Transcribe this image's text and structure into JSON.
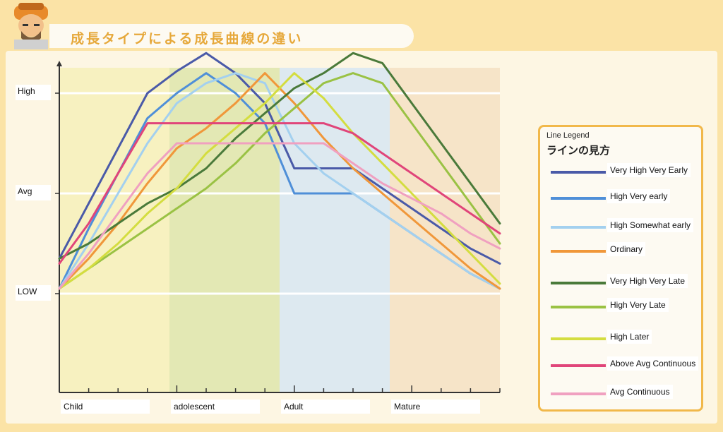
{
  "header": {
    "title": "成長タイプによる成長曲線の違い"
  },
  "legend": {
    "caption": "Line Legend",
    "title": "ラインの見方"
  },
  "chart_data": {
    "type": "line",
    "categories": [
      "Child",
      "adolescent",
      "Adult",
      "Mature"
    ],
    "category_colors": [
      "#f7f1c0",
      "#e3e8b4",
      "#dde9f0",
      "#f6e4c8"
    ],
    "x_range": [
      0,
      15
    ],
    "y_ticks": [
      {
        "label": "LOW",
        "value": 1
      },
      {
        "label": "Avg",
        "value": 2
      },
      {
        "label": "High",
        "value": 3
      }
    ],
    "ylim": [
      0.2,
      3.35
    ],
    "grid": true,
    "legend_position": "right",
    "series": [
      {
        "name": "Very High Very Early",
        "color": "#4a5aa8",
        "x": [
          0,
          1,
          2,
          3,
          4,
          5,
          6,
          7,
          8,
          9,
          10,
          11,
          12,
          13,
          14,
          15
        ],
        "y": [
          1.35,
          1.9,
          2.45,
          3.0,
          3.22,
          3.4,
          3.2,
          2.9,
          2.25,
          2.25,
          2.25,
          2.05,
          1.85,
          1.65,
          1.45,
          1.3
        ]
      },
      {
        "name": "High Very early",
        "color": "#4f8fd8",
        "x": [
          0,
          1,
          2,
          3,
          4,
          5,
          6,
          7,
          8,
          9,
          10,
          11,
          12,
          13,
          14,
          15
        ],
        "y": [
          1.05,
          1.65,
          2.2,
          2.75,
          3.0,
          3.2,
          3.0,
          2.7,
          2.0,
          2.0,
          2.0,
          1.8,
          1.6,
          1.4,
          1.2,
          1.05
        ]
      },
      {
        "name": "High Somewhat early",
        "color": "#a3d0ef",
        "x": [
          0,
          1,
          2,
          3,
          4,
          5,
          6,
          7,
          8,
          9,
          10,
          11,
          12,
          13,
          14,
          15
        ],
        "y": [
          1.05,
          1.5,
          2.0,
          2.5,
          2.9,
          3.1,
          3.2,
          3.1,
          2.5,
          2.2,
          2.0,
          1.8,
          1.6,
          1.4,
          1.2,
          1.05
        ]
      },
      {
        "name": "Ordinary",
        "color": "#f0973a",
        "x": [
          0,
          1,
          2,
          3,
          4,
          5,
          6,
          7,
          8,
          9,
          10,
          11,
          12,
          13,
          14,
          15
        ],
        "y": [
          1.05,
          1.35,
          1.7,
          2.1,
          2.45,
          2.65,
          2.9,
          3.2,
          2.9,
          2.55,
          2.25,
          2.0,
          1.75,
          1.5,
          1.25,
          1.05
        ]
      },
      {
        "name": "Very High Very Late",
        "color": "#4a7a3a",
        "x": [
          0,
          1,
          2,
          3,
          4,
          5,
          6,
          7,
          8,
          9,
          10,
          11,
          12,
          13,
          14,
          15
        ],
        "y": [
          1.35,
          1.5,
          1.7,
          1.9,
          2.05,
          2.25,
          2.55,
          2.8,
          3.05,
          3.2,
          3.4,
          3.3,
          2.9,
          2.5,
          2.1,
          1.7
        ]
      },
      {
        "name": "High Very Late",
        "color": "#9ac244",
        "x": [
          0,
          1,
          2,
          3,
          4,
          5,
          6,
          7,
          8,
          9,
          10,
          11,
          12,
          13,
          14,
          15
        ],
        "y": [
          1.05,
          1.25,
          1.45,
          1.65,
          1.85,
          2.05,
          2.3,
          2.6,
          2.85,
          3.1,
          3.2,
          3.1,
          2.7,
          2.3,
          1.9,
          1.5
        ]
      },
      {
        "name": "High Later",
        "color": "#d4dd40",
        "x": [
          0,
          1,
          2,
          3,
          4,
          5,
          6,
          7,
          8,
          9,
          10,
          11,
          12,
          13,
          14,
          15
        ],
        "y": [
          1.05,
          1.25,
          1.5,
          1.8,
          2.05,
          2.4,
          2.65,
          2.9,
          3.2,
          2.95,
          2.6,
          2.3,
          2.0,
          1.7,
          1.4,
          1.1
        ]
      },
      {
        "name": "Above Avg Continuous",
        "color": "#e0457a",
        "x": [
          0,
          1,
          2,
          3,
          4,
          5,
          6,
          7,
          8,
          9,
          10,
          11,
          12,
          13,
          14,
          15
        ],
        "y": [
          1.3,
          1.7,
          2.2,
          2.7,
          2.7,
          2.7,
          2.7,
          2.7,
          2.7,
          2.7,
          2.6,
          2.4,
          2.2,
          2.0,
          1.8,
          1.6
        ]
      },
      {
        "name": "Avg Continuous",
        "color": "#f0a0c0",
        "x": [
          0,
          1,
          2,
          3,
          4,
          5,
          6,
          7,
          8,
          9,
          10,
          11,
          12,
          13,
          14,
          15
        ],
        "y": [
          1.05,
          1.4,
          1.8,
          2.2,
          2.5,
          2.5,
          2.5,
          2.5,
          2.5,
          2.5,
          2.3,
          2.1,
          1.95,
          1.8,
          1.6,
          1.45
        ]
      }
    ]
  }
}
